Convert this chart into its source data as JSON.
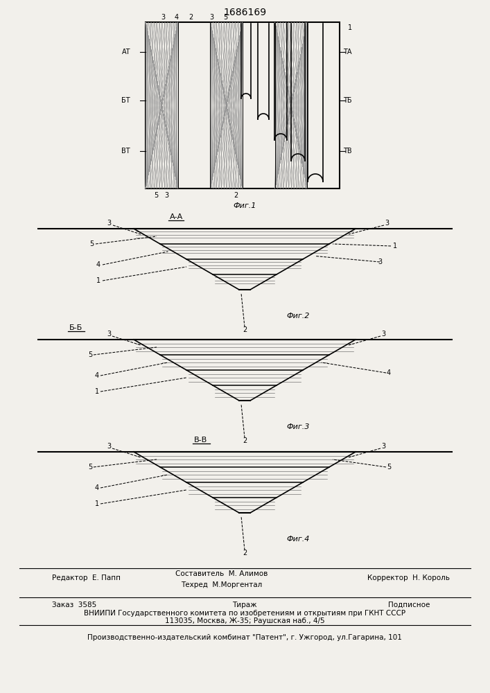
{
  "patent_number": "1686169",
  "background_color": "#f2f0eb",
  "footer": {
    "line1_left": "Редактор  Е. Папп",
    "line1_mid": "Составитель  М. Алимов",
    "line2_mid": "Техред  М.Моргентал",
    "line1_right": "Корректор  Н. Король",
    "line3_left": "Заказ  3585",
    "line3_mid": "Тираж",
    "line3_right": "Подписное",
    "line4": "ВНИИПИ Государственного комитета по изобретениям и открытиям при ГКНТ СССР",
    "line5": "113035, Москва, Ж-35; Раушская наб., 4/5",
    "line6": "Производственно-издательский комбинат \"Патент\", г. Ужгород, ул.Гагарина, 101"
  }
}
